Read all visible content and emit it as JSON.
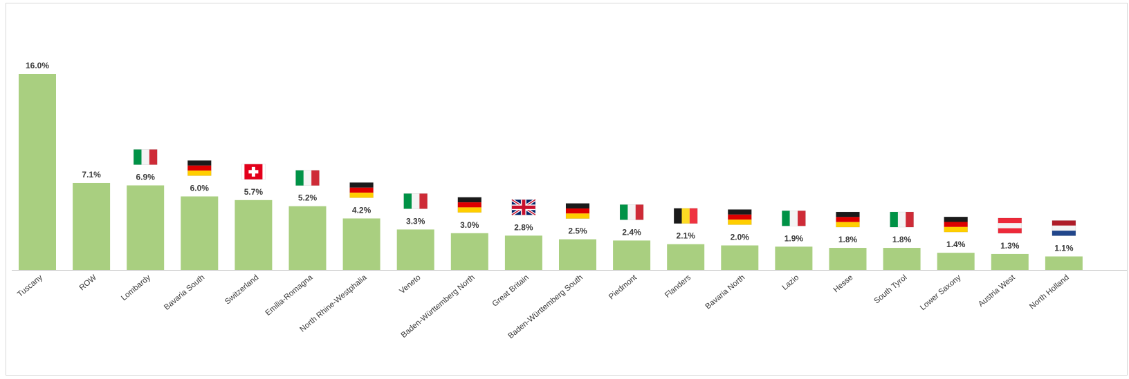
{
  "chart_data": {
    "type": "bar",
    "categories": [
      "Tuscany",
      "ROW",
      "Lombardy",
      "Bavaria South",
      "Switzerland",
      "Emilia-Romagna",
      "North Rhine-Westphalia",
      "Veneto",
      "Baden-Württemberg North",
      "Great Britain",
      "Baden-Württemberg South",
      "Piedmont",
      "Flanders",
      "Bavaria North",
      "Lazio",
      "Hesse",
      "South Tyrol",
      "Lower Saxony",
      "Austria West",
      "North Holland"
    ],
    "values": [
      16.0,
      7.1,
      6.9,
      6.0,
      5.7,
      5.2,
      4.2,
      3.3,
      3.0,
      2.8,
      2.5,
      2.4,
      2.1,
      2.0,
      1.9,
      1.8,
      1.8,
      1.4,
      1.3,
      1.1
    ],
    "value_labels": [
      "16.0%",
      "7.1%",
      "6.9%",
      "6.0%",
      "5.7%",
      "5.2%",
      "4.2%",
      "3.3%",
      "3.0%",
      "2.8%",
      "2.5%",
      "2.4%",
      "2.1%",
      "2.0%",
      "1.9%",
      "1.8%",
      "1.8%",
      "1.4%",
      "1.3%",
      "1.1%"
    ],
    "flags": [
      "",
      "",
      "italy",
      "germany",
      "switzerland",
      "italy",
      "germany",
      "italy",
      "germany",
      "united-kingdom",
      "germany",
      "italy",
      "belgium",
      "germany",
      "italy",
      "germany",
      "italy",
      "germany",
      "austria",
      "netherlands"
    ],
    "title": "",
    "xlabel": "",
    "ylabel": "",
    "ylim": [
      0,
      16.0
    ],
    "grid": false,
    "legend": "none",
    "bar_color": "#a9cf80"
  },
  "colors": {
    "bar": "#a9cf80",
    "axis": "#c8c8c8",
    "text": "#3a3a3a"
  }
}
